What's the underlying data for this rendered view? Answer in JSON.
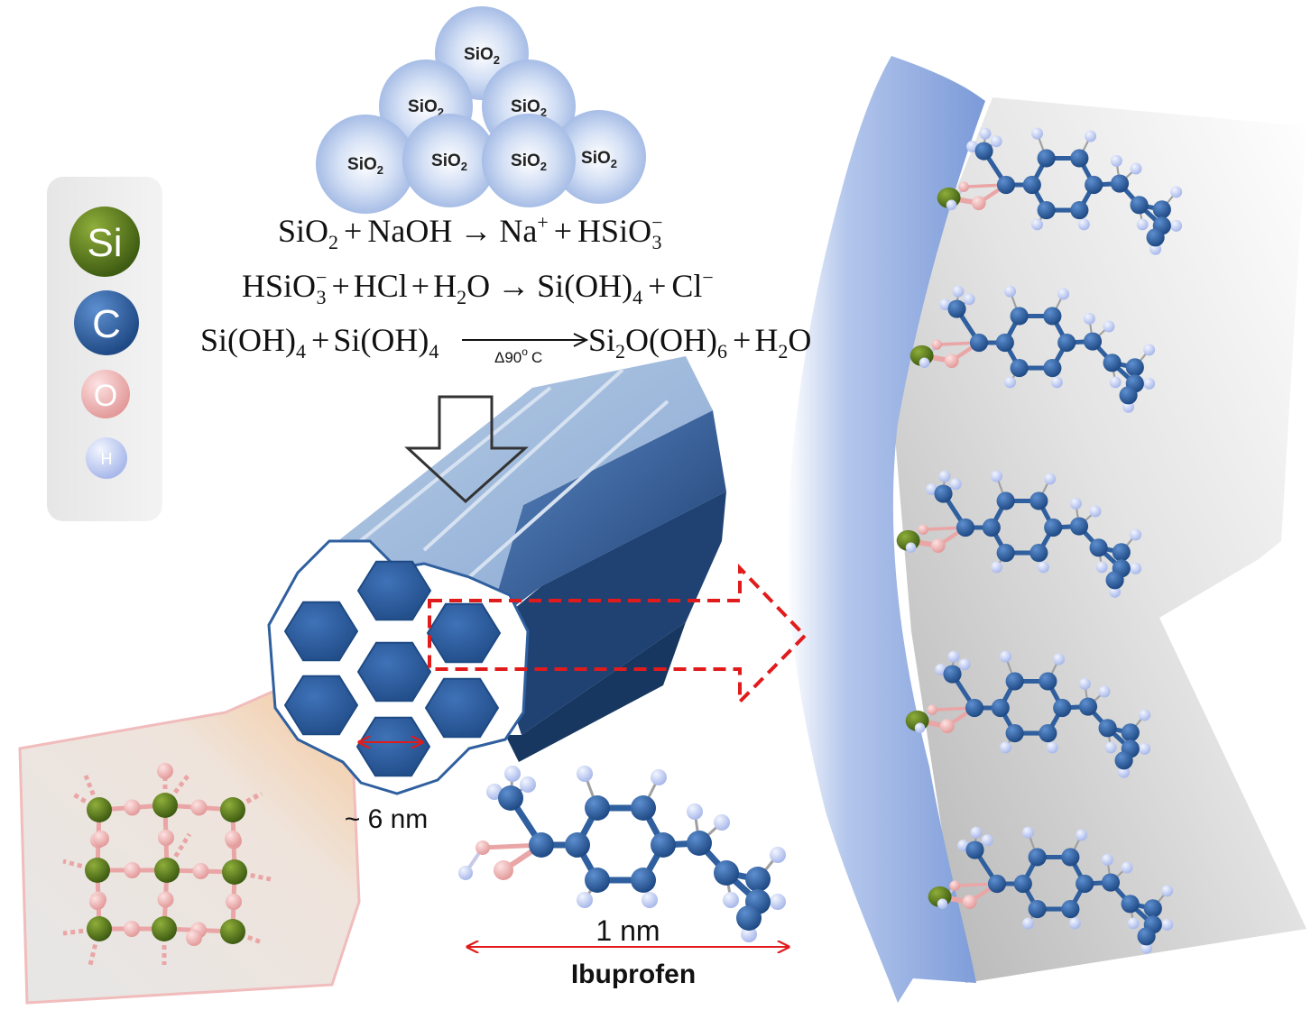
{
  "nanoparticles": {
    "label": "SiO",
    "subscript": "2"
  },
  "legend": {
    "items": [
      {
        "symbol": "Si",
        "color": "#5a7a1e"
      },
      {
        "symbol": "C",
        "color": "#2f5f9e"
      },
      {
        "symbol": "O",
        "color": "#eaa6a6"
      },
      {
        "symbol": "H",
        "color": "#b4c3ef"
      }
    ]
  },
  "equations": {
    "eq1": {
      "lhs_a": "SiO",
      "lhs_a_sub": "2",
      "plus1": "+",
      "lhs_b": "NaOH",
      "arrow": "→",
      "rhs_a": "Na",
      "rhs_a_sup": "+",
      "plus2": "+",
      "rhs_b": "HSiO",
      "rhs_b_sub": "3",
      "rhs_b_sup": "−"
    },
    "eq2": {
      "lhs_a": "HSiO",
      "lhs_a_sub": "3",
      "lhs_a_sup": "−",
      "plus1": "+",
      "lhs_b": "HCl",
      "plus2": "+",
      "lhs_c": "H",
      "lhs_c_sub": "2",
      "lhs_c_tail": "O",
      "arrow": "→",
      "rhs_a": "Si(OH)",
      "rhs_a_sub": "4",
      "plus3": "+",
      "rhs_b": "Cl",
      "rhs_b_sup": "−"
    },
    "eq3": {
      "lhs_a": "Si(OH)",
      "lhs_a_sub": "4",
      "plus1": "+",
      "lhs_b": "Si(OH)",
      "lhs_b_sub": "4",
      "condition": "Δ90",
      "condition_sup": "o",
      "condition_unit": "C",
      "rhs_a": "Si",
      "rhs_a_sub": "2",
      "rhs_a_mid": "O(OH)",
      "rhs_a_sub2": "6",
      "plus2": "+",
      "rhs_b": "H",
      "rhs_b_sub": "2",
      "rhs_b_tail": "O"
    }
  },
  "pore_size_label": "~ 6 nm",
  "molecule": {
    "size_label": "1 nm",
    "name": "Ibuprofen"
  },
  "colors": {
    "pore_blue": "#2f5f9e",
    "column_light": "#a9c0df",
    "red_arrow": "#e11b1b",
    "membrane": "#8fa9de"
  }
}
